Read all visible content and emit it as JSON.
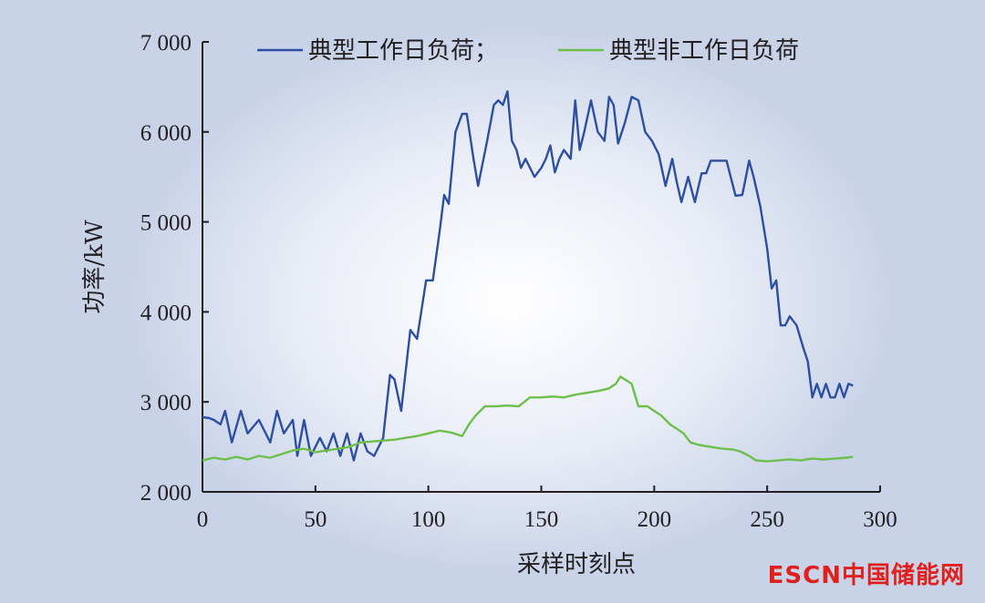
{
  "chart_data": {
    "type": "line",
    "title": "",
    "xlabel": "采样时刻点",
    "ylabel": "功率/kW",
    "xlim": [
      0,
      300
    ],
    "ylim": [
      2000,
      7000
    ],
    "xticks": [
      0,
      50,
      100,
      150,
      200,
      250,
      300
    ],
    "xtick_labels": [
      "0",
      "50",
      "100",
      "150",
      "200",
      "250",
      "300"
    ],
    "yticks": [
      2000,
      3000,
      4000,
      5000,
      6000,
      7000
    ],
    "ytick_labels": [
      "2 000",
      "3 000",
      "4 000",
      "5 000",
      "6 000",
      "7 000"
    ],
    "grid": false,
    "legend_position": "top",
    "series": [
      {
        "name": "典型工作日负荷；",
        "color": "#2d4fa2",
        "x": [
          0,
          3,
          5,
          8,
          10,
          13,
          17,
          20,
          25,
          30,
          33,
          36,
          40,
          42,
          45,
          48,
          52,
          55,
          58,
          61,
          64,
          67,
          70,
          73,
          76,
          80,
          83,
          85,
          88,
          92,
          95,
          99,
          102,
          105,
          107,
          109,
          112,
          115,
          117,
          120,
          122,
          126,
          129,
          131,
          133,
          135,
          137,
          139,
          141,
          143,
          147,
          150,
          152,
          154,
          156,
          158,
          160,
          163,
          165,
          167,
          169,
          172,
          175,
          178,
          180,
          182,
          184,
          187,
          190,
          193,
          196,
          199,
          202,
          205,
          208,
          210,
          212,
          215,
          218,
          221,
          223,
          225,
          228,
          232,
          236,
          239,
          242,
          244,
          247,
          250,
          252,
          254,
          256,
          258,
          260,
          263,
          266,
          268,
          270,
          272,
          274,
          276,
          278,
          280,
          282,
          284,
          286,
          288
        ],
        "y": [
          2830,
          2820,
          2800,
          2750,
          2900,
          2550,
          2900,
          2650,
          2800,
          2550,
          2900,
          2650,
          2800,
          2400,
          2800,
          2400,
          2600,
          2450,
          2650,
          2400,
          2650,
          2350,
          2650,
          2450,
          2400,
          2600,
          3300,
          3250,
          2900,
          3800,
          3700,
          4350,
          4350,
          4900,
          5300,
          5200,
          6000,
          6200,
          6200,
          5700,
          5400,
          5900,
          6300,
          6350,
          6300,
          6450,
          5900,
          5800,
          5600,
          5700,
          5500,
          5600,
          5700,
          5850,
          5550,
          5700,
          5800,
          5700,
          6350,
          5800,
          6000,
          6350,
          6000,
          5900,
          6390,
          6300,
          5870,
          6100,
          6390,
          6350,
          6000,
          5900,
          5750,
          5400,
          5700,
          5440,
          5220,
          5500,
          5220,
          5540,
          5540,
          5680,
          5680,
          5680,
          5290,
          5300,
          5680,
          5500,
          5170,
          4700,
          4260,
          4350,
          3850,
          3850,
          3950,
          3850,
          3600,
          3450,
          3050,
          3200,
          3050,
          3200,
          3050,
          3050,
          3200,
          3050,
          3200,
          3180
        ]
      },
      {
        "name": "典型非工作日负荷",
        "color": "#6cc04a",
        "x": [
          0,
          5,
          10,
          15,
          20,
          25,
          30,
          35,
          40,
          45,
          50,
          55,
          60,
          65,
          70,
          75,
          80,
          85,
          90,
          95,
          100,
          105,
          110,
          115,
          118,
          121,
          125,
          130,
          135,
          140,
          145,
          150,
          155,
          160,
          165,
          170,
          175,
          180,
          183,
          185,
          187,
          190,
          193,
          197,
          200,
          203,
          207,
          210,
          213,
          216,
          220,
          225,
          230,
          235,
          238,
          242,
          245,
          250,
          255,
          260,
          265,
          270,
          275,
          280,
          285,
          288
        ],
        "y": [
          2350,
          2380,
          2360,
          2390,
          2360,
          2400,
          2380,
          2420,
          2460,
          2480,
          2440,
          2460,
          2480,
          2500,
          2550,
          2560,
          2570,
          2580,
          2600,
          2620,
          2650,
          2680,
          2660,
          2620,
          2750,
          2850,
          2950,
          2950,
          2960,
          2950,
          3050,
          3050,
          3060,
          3050,
          3080,
          3100,
          3120,
          3150,
          3200,
          3280,
          3250,
          3200,
          2950,
          2950,
          2900,
          2850,
          2750,
          2700,
          2650,
          2550,
          2520,
          2500,
          2480,
          2470,
          2450,
          2400,
          2350,
          2340,
          2350,
          2360,
          2350,
          2370,
          2360,
          2370,
          2380,
          2390
        ]
      }
    ]
  },
  "watermark": "ESCN中国储能网"
}
